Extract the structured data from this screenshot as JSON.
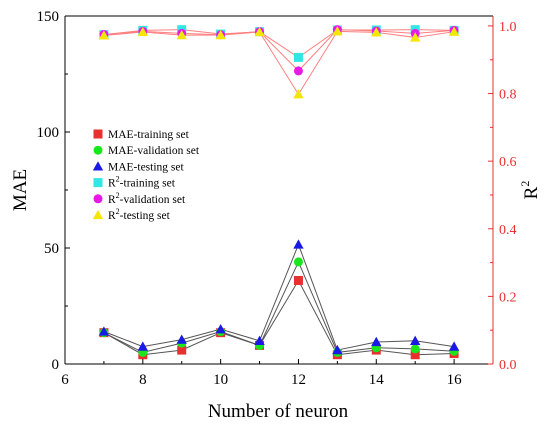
{
  "chart_data": {
    "type": "line",
    "x": [
      7,
      8,
      9,
      10,
      11,
      12,
      13,
      14,
      15,
      16
    ],
    "xlabel": "Number of neuron",
    "ylabel_left": "MAE",
    "ylabel_right": "R",
    "ylabel_right_sup": "2",
    "xlim": [
      6,
      17
    ],
    "xticks": [
      "6",
      "8",
      "10",
      "12",
      "14",
      "16"
    ],
    "ylim_left": [
      0,
      150
    ],
    "yticks_left": [
      "0",
      "50",
      "100",
      "150"
    ],
    "ylim_right": [
      0,
      1.0294
    ],
    "yticks_right": [
      "0.0",
      "0.2",
      "0.4",
      "0.6",
      "0.8",
      "1.0"
    ],
    "legend_position": "center-left",
    "series": [
      {
        "name": "MAE-training set",
        "axis": "left",
        "marker": "square",
        "color": "#e8302f",
        "line_color": "#555555",
        "values": [
          13.5,
          4,
          6,
          13.5,
          8,
          36,
          4,
          6,
          4,
          4.5
        ]
      },
      {
        "name": "MAE-validation set",
        "axis": "left",
        "marker": "circle",
        "color": "#19e61c",
        "line_color": "#555555",
        "values": [
          13.5,
          5,
          9,
          14,
          8,
          44,
          5,
          7,
          6.5,
          5.5
        ]
      },
      {
        "name": "MAE-testing set",
        "axis": "left",
        "marker": "triangle",
        "color": "#1a1ae6",
        "line_color": "#555555",
        "values": [
          14,
          7.5,
          10.5,
          15,
          10,
          51.5,
          6,
          9.5,
          10,
          7.5
        ]
      },
      {
        "name_prefix": "R",
        "name_sup": "2",
        "name_suffix": "-training set",
        "axis": "right",
        "marker": "square",
        "color": "#33e6e6",
        "line_color": "#ff7f7f",
        "values": [
          0.974,
          0.987,
          0.989,
          0.976,
          0.983,
          0.907,
          0.988,
          0.988,
          0.989,
          0.987
        ]
      },
      {
        "name_prefix": "R",
        "name_sup": "2",
        "name_suffix": "-validation set",
        "axis": "right",
        "marker": "circle",
        "color": "#e61ae6",
        "line_color": "#ff7f7f",
        "values": [
          0.975,
          0.984,
          0.978,
          0.974,
          0.983,
          0.867,
          0.989,
          0.985,
          0.978,
          0.987
        ]
      },
      {
        "name_prefix": "R",
        "name_sup": "2",
        "name_suffix": "-testing set",
        "axis": "right",
        "marker": "triangle",
        "color": "#f5e60a",
        "line_color": "#ff7f7f",
        "values": [
          0.972,
          0.982,
          0.973,
          0.973,
          0.982,
          0.798,
          0.984,
          0.981,
          0.966,
          0.983
        ]
      }
    ]
  }
}
